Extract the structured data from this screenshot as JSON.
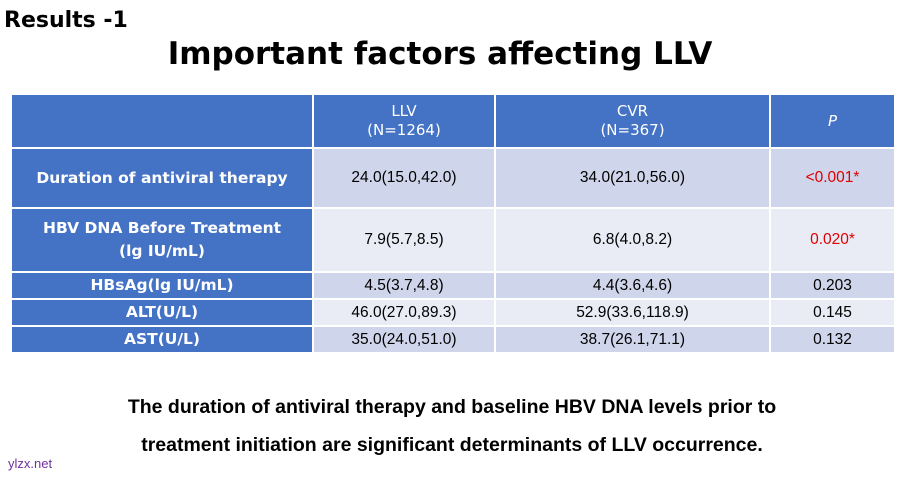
{
  "slide": {
    "label": "Results -1",
    "title": "Important factors affecting LLV"
  },
  "table": {
    "headers": {
      "factor": "",
      "llv_line1": "LLV",
      "llv_line2": "(N=1264)",
      "cvr_line1": "CVR",
      "cvr_line2": "(N=367)",
      "p": "P"
    },
    "rows": [
      {
        "factor_line1": "Duration of antiviral therapy",
        "factor_line2": "",
        "llv": "24.0(15.0,42.0)",
        "cvr": "34.0(21.0,56.0)",
        "p": "<0.001*",
        "significant": true
      },
      {
        "factor_line1": "HBV DNA Before Treatment",
        "factor_line2": "(lg IU/mL)",
        "llv": "7.9(5.7,8.5)",
        "cvr": "6.8(4.0,8.2)",
        "p": "0.020*",
        "significant": true
      },
      {
        "factor_line1": "HBsAg(lg IU/mL)",
        "factor_line2": "",
        "llv": "4.5(3.7,4.8)",
        "cvr": "4.4(3.6,4.6)",
        "p": "0.203",
        "significant": false
      },
      {
        "factor_line1": "ALT(U/L)",
        "factor_line2": "",
        "llv": "46.0(27.0,89.3)",
        "cvr": "52.9(33.6,118.9)",
        "p": "0.145",
        "significant": false
      },
      {
        "factor_line1": "AST(U/L)",
        "factor_line2": "",
        "llv": "35.0(24.0,51.0)",
        "cvr": "38.7(26.1,71.1)",
        "p": "0.132",
        "significant": false
      }
    ]
  },
  "conclusion": {
    "line1": "The duration of antiviral therapy and baseline HBV DNA levels prior to",
    "line2": "treatment initiation are significant determinants of LLV occurrence."
  },
  "watermark": "ylzx.net",
  "colors": {
    "header_blue": "#4472c4",
    "row_dark": "#cfd5ea",
    "row_light": "#e9ebf5",
    "significant_red": "#e00000",
    "watermark_purple": "#7030a0"
  }
}
